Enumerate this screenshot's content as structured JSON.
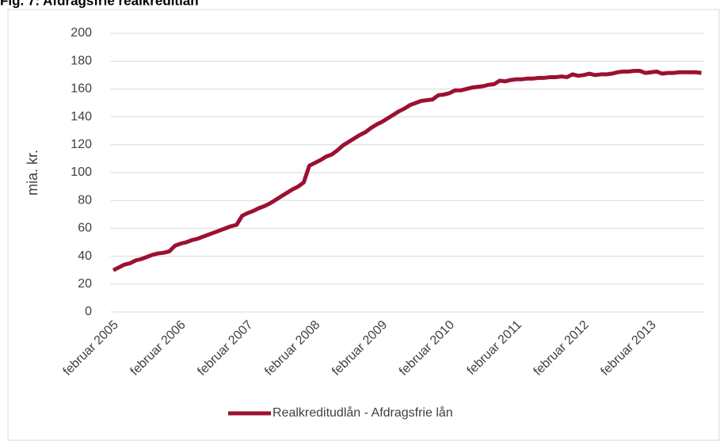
{
  "chart_data": {
    "type": "line",
    "title": "Fig. 7: Afdragsfrie realkreditlån",
    "y_label": "mia. kr.",
    "categories": [
      "februar 2005",
      null,
      null,
      null,
      null,
      null,
      null,
      null,
      null,
      null,
      null,
      null,
      "februar 2006",
      null,
      null,
      null,
      null,
      null,
      null,
      null,
      null,
      null,
      null,
      null,
      "februar 2007",
      null,
      null,
      null,
      null,
      null,
      null,
      null,
      null,
      null,
      null,
      null,
      "februar 2008",
      null,
      null,
      null,
      null,
      null,
      null,
      null,
      null,
      null,
      null,
      null,
      "februar 2009",
      null,
      null,
      null,
      null,
      null,
      null,
      null,
      null,
      null,
      null,
      null,
      "februar 2010",
      null,
      null,
      null,
      null,
      null,
      null,
      null,
      null,
      null,
      null,
      null,
      "februar 2011",
      null,
      null,
      null,
      null,
      null,
      null,
      null,
      null,
      null,
      null,
      null,
      "februar 2012",
      null,
      null,
      null,
      null,
      null,
      null,
      null,
      null,
      null,
      null,
      null,
      "februar 2013",
      null,
      null,
      null,
      null,
      null,
      null,
      null,
      null,
      null
    ],
    "series": [
      {
        "name": "Realkreditudlån - Afdragsfrie lån",
        "color": "#9b1131",
        "values": [
          30,
          32,
          34,
          35,
          37,
          38,
          39.5,
          41,
          42,
          42.5,
          43.5,
          47.5,
          49,
          50,
          51.5,
          52.5,
          54,
          55.5,
          57,
          58.5,
          60,
          61.5,
          62.5,
          69,
          71,
          72.5,
          74.5,
          76,
          78,
          80.5,
          83,
          85.5,
          88,
          90,
          93,
          105,
          107,
          109,
          111.5,
          113,
          116,
          119.5,
          122,
          124.5,
          127,
          129,
          132,
          134.5,
          136.5,
          139,
          141.5,
          144,
          146,
          148.5,
          150,
          151.5,
          152,
          152.5,
          155.5,
          156,
          157,
          159,
          159,
          160,
          161,
          161.5,
          162,
          163,
          163.5,
          166,
          165.5,
          166.5,
          167,
          167,
          167.5,
          167.5,
          168,
          168,
          168.5,
          168.5,
          169,
          168.5,
          170.5,
          169.5,
          170,
          171,
          170,
          170.5,
          170.5,
          171,
          172,
          172.5,
          172.5,
          173,
          173,
          171.5,
          172,
          172.5,
          171,
          171.5,
          171.5,
          172,
          172,
          172,
          172,
          171.5
        ]
      }
    ],
    "ylim": [
      0,
      200
    ],
    "yticks": [
      0,
      20,
      40,
      60,
      80,
      100,
      120,
      140,
      160,
      180,
      200
    ],
    "grid": true,
    "legend": "bottom"
  }
}
